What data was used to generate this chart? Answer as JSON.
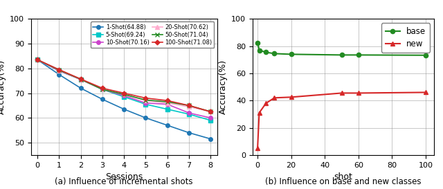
{
  "left": {
    "sessions": [
      0,
      1,
      2,
      3,
      4,
      5,
      6,
      7,
      8
    ],
    "series": [
      {
        "label": "1-Shot(64.88)",
        "color": "#1f77b4",
        "marker": "o",
        "values": [
          83.5,
          77.5,
          72.0,
          67.5,
          63.5,
          60.0,
          57.0,
          54.0,
          51.5
        ]
      },
      {
        "label": "5-Shot(69.24)",
        "color": "#00c8c8",
        "marker": "s",
        "values": [
          83.5,
          79.0,
          75.5,
          71.5,
          68.5,
          65.5,
          63.5,
          61.5,
          59.0
        ]
      },
      {
        "label": "10-Shot(70.16)",
        "color": "#cc44cc",
        "marker": "o",
        "values": [
          83.5,
          79.0,
          75.5,
          71.5,
          69.0,
          66.0,
          65.5,
          62.0,
          60.0
        ]
      },
      {
        "label": "20-Shot(70.62)",
        "color": "#ffaacc",
        "marker": "^",
        "values": [
          83.5,
          79.2,
          75.5,
          71.5,
          69.5,
          67.0,
          66.0,
          64.5,
          62.5
        ]
      },
      {
        "label": "50-Shot(71.04)",
        "color": "#228B22",
        "marker": "x",
        "values": [
          83.5,
          79.3,
          75.6,
          71.5,
          69.5,
          67.2,
          66.5,
          65.0,
          62.5
        ]
      },
      {
        "label": "100-Shot(71.08)",
        "color": "#d62728",
        "marker": "D",
        "values": [
          83.5,
          79.5,
          75.7,
          72.0,
          70.0,
          68.0,
          67.0,
          65.0,
          62.5
        ]
      }
    ],
    "xlabel": "Sessions",
    "ylabel": "Accuracy(%)",
    "ylim": [
      45,
      100
    ],
    "yticks": [
      50,
      60,
      70,
      80,
      90,
      100
    ],
    "caption": "(a) Influence of incremental shots"
  },
  "right": {
    "shots": [
      0,
      1,
      5,
      10,
      20,
      50,
      60,
      100
    ],
    "base": [
      82.5,
      77.0,
      75.5,
      74.5,
      74.0,
      73.5,
      73.5,
      73.3
    ],
    "new": [
      5.0,
      31.0,
      38.0,
      42.0,
      42.5,
      45.5,
      45.5,
      46.0
    ],
    "base_color": "#228B22",
    "new_color": "#d62728",
    "xlabel": "shot",
    "ylabel": "Accuracy(%)",
    "ylim": [
      0,
      100
    ],
    "yticks": [
      0,
      20,
      40,
      60,
      80,
      100
    ],
    "xticks": [
      0,
      20,
      40,
      60,
      80,
      100
    ],
    "caption": "(b) Influence on base and new classes"
  },
  "figsize": [
    6.4,
    2.73
  ],
  "dpi": 100
}
